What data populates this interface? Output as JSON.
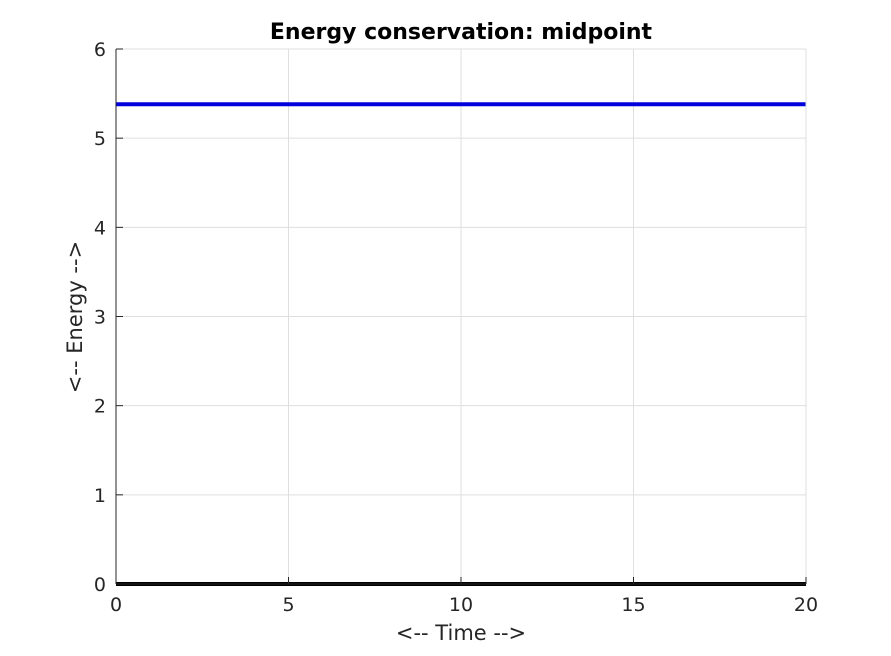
{
  "chart_data": {
    "type": "line",
    "title": "Energy conservation: midpoint",
    "xlabel": "<-- Time -->",
    "ylabel": "<-- Energy -->",
    "xlim": [
      0,
      20
    ],
    "ylim": [
      0,
      6
    ],
    "xticks": [
      0,
      5,
      10,
      15,
      20
    ],
    "yticks": [
      0,
      1,
      2,
      3,
      4,
      5,
      6
    ],
    "grid": true,
    "series": [
      {
        "x": [
          0,
          5,
          10,
          15,
          20
        ],
        "y": [
          5.38,
          5.38,
          5.38,
          5.38,
          5.38
        ],
        "color": "#0000dd"
      },
      {
        "x": [
          0,
          5,
          10,
          15,
          20
        ],
        "y": [
          0,
          0,
          0,
          0,
          0
        ],
        "color": "#000000"
      }
    ]
  }
}
